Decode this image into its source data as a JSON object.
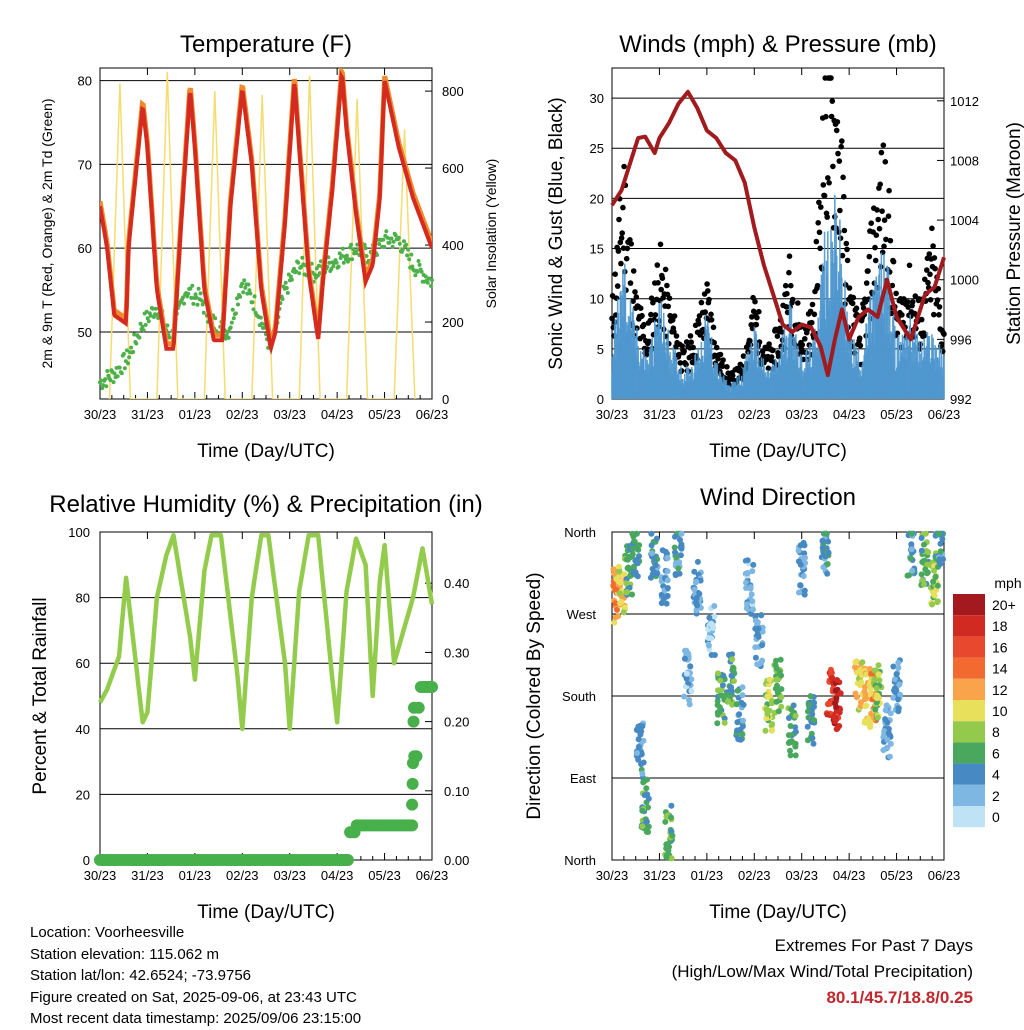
{
  "colors": {
    "temp_2m": "#d42a1f",
    "temp_9m": "#f08a2c",
    "dewpoint": "#4db04a",
    "solar": "#f5dc6e",
    "wind": "#4f97cf",
    "gust": "#000000",
    "pressure": "#a11a1e",
    "humidity": "#93cc4c",
    "precip": "#47b04b",
    "extremes": "#c2272d"
  },
  "legend": {
    "title": "mph",
    "labels": [
      "20+",
      "18",
      "16",
      "14",
      "12",
      "10",
      "8",
      "6",
      "4",
      "2",
      "0"
    ],
    "colors": [
      "#a3191f",
      "#d12a22",
      "#e8492e",
      "#f26a2f",
      "#f9a34b",
      "#e8e05a",
      "#94ca4c",
      "#49a85e",
      "#4789c2",
      "#7db7e2",
      "#bfe3f5"
    ]
  },
  "info": {
    "location": "Location: Voorheesville",
    "elevation": "Station elevation: 115.062 m",
    "latlon": "Station lat/lon: 42.6524; -73.9756",
    "created": "Figure created on Sat, 2025-09-06, at 23:43 UTC",
    "recent": "Most recent data timestamp: 2025/09/06 23:15:00"
  },
  "extremes": {
    "title": "Extremes For Past 7 Days",
    "subtitle": "(High/Low/Max Wind/Total Precipitation)",
    "values": "80.1/45.7/18.8/0.25"
  },
  "chart_data": [
    {
      "type": "line",
      "title": "Temperature (F)",
      "xlabel": "Time (Day/UTC)",
      "ylabel": "2m & 9m T (Red, Orange) & 2m Td (Green)",
      "y2label": "Solar Insolation (Yellow)",
      "xticks": [
        "30/23",
        "31/23",
        "01/23",
        "02/23",
        "03/23",
        "04/23",
        "05/23",
        "06/23"
      ],
      "xlim": [
        0,
        7
      ],
      "ylim": [
        42,
        81.5
      ],
      "yticks": [
        50,
        60,
        70,
        80
      ],
      "y2lim": [
        0,
        860
      ],
      "y2ticks": [
        0,
        200,
        400,
        600,
        800
      ],
      "grid": true,
      "series": [
        {
          "name": "2m T",
          "axis": "left",
          "x": [
            0,
            0.15,
            0.3,
            0.55,
            0.6,
            0.9,
            1.0,
            1.2,
            1.4,
            1.55,
            1.7,
            1.9,
            2.0,
            2.2,
            2.4,
            2.58,
            2.75,
            3.0,
            3.2,
            3.4,
            3.6,
            3.7,
            3.9,
            4.1,
            4.2,
            4.4,
            4.6,
            4.7,
            4.9,
            5.1,
            5.2,
            5.4,
            5.6,
            5.75,
            5.9,
            6.0,
            6.3,
            6.6,
            7.0
          ],
          "y": [
            65,
            60,
            52,
            51,
            60,
            77,
            72,
            55,
            48,
            48,
            62,
            79,
            72,
            55,
            49,
            49,
            65,
            79,
            70,
            55,
            48,
            50,
            63,
            80,
            72,
            57,
            49,
            56,
            67,
            81,
            74,
            64,
            56,
            58,
            66,
            80,
            72,
            66,
            60
          ]
        },
        {
          "name": "2m Td",
          "axis": "left",
          "x": [
            0,
            0.3,
            0.6,
            0.9,
            1.2,
            1.5,
            1.8,
            2.1,
            2.4,
            2.7,
            3.0,
            3.3,
            3.6,
            3.9,
            4.2,
            4.5,
            4.8,
            5.1,
            5.4,
            5.7,
            6.0,
            6.3,
            6.6,
            7.0
          ],
          "y": [
            44,
            45,
            47,
            51,
            53,
            49,
            55,
            54,
            51,
            50,
            56,
            53,
            48,
            55,
            58,
            57,
            58,
            59,
            60,
            59,
            61,
            61,
            58,
            56
          ]
        },
        {
          "name": "Solar",
          "axis": "right",
          "x": [
            0.2,
            0.42,
            0.64,
            1.2,
            1.42,
            1.64,
            2.2,
            2.42,
            2.64,
            3.2,
            3.42,
            3.64,
            4.2,
            4.42,
            4.64,
            5.2,
            5.42,
            5.64,
            6.2,
            6.42,
            6.64
          ],
          "y": [
            0,
            820,
            0,
            0,
            850,
            0,
            0,
            800,
            0,
            0,
            790,
            0,
            0,
            840,
            0,
            0,
            780,
            0,
            0,
            700,
            0
          ]
        }
      ]
    },
    {
      "type": "scatter",
      "title": "Winds (mph) & Pressure (mb)",
      "xlabel": "Time (Day/UTC)",
      "ylabel": "Sonic Wind & Gust (Blue, Black)",
      "y2label": "Station Pressure (Maroon)",
      "xticks": [
        "30/23",
        "31/23",
        "01/23",
        "02/23",
        "03/23",
        "04/23",
        "05/23",
        "06/23"
      ],
      "xlim": [
        0,
        7
      ],
      "ylim": [
        0,
        33
      ],
      "yticks": [
        0,
        5,
        10,
        15,
        20,
        25,
        30
      ],
      "y2lim": [
        992,
        1014.2
      ],
      "y2ticks": [
        992,
        996,
        1000,
        1004,
        1008,
        1012
      ],
      "grid": true,
      "series": [
        {
          "name": "Wind",
          "x": [
            0,
            0.25,
            0.5,
            0.75,
            1.0,
            1.25,
            1.5,
            1.75,
            2.0,
            2.25,
            2.5,
            2.75,
            3.0,
            3.25,
            3.5,
            3.75,
            4.0,
            4.25,
            4.5,
            4.75,
            5.0,
            5.25,
            5.5,
            5.75,
            6.0,
            6.25,
            6.5,
            6.75,
            7.0
          ],
          "y": [
            4,
            10,
            5,
            3,
            7,
            4,
            2,
            3,
            6,
            2,
            1,
            2,
            5,
            2,
            3,
            7,
            3,
            4,
            12,
            14,
            5,
            3,
            8,
            11,
            4,
            6,
            4,
            5,
            3
          ]
        },
        {
          "name": "Gust",
          "x": [
            0,
            0.25,
            0.5,
            0.75,
            1.0,
            1.25,
            1.5,
            1.75,
            2.0,
            2.25,
            2.5,
            2.75,
            3.0,
            3.25,
            3.5,
            3.75,
            4.0,
            4.25,
            4.5,
            4.75,
            5.0,
            5.25,
            5.5,
            5.75,
            6.0,
            6.25,
            6.5,
            6.75,
            7.0
          ],
          "y": [
            8,
            21,
            9,
            6,
            13,
            8,
            4,
            6,
            10,
            4,
            2,
            3,
            9,
            4,
            6,
            12,
            6,
            8,
            29,
            28,
            10,
            6,
            16,
            22,
            8,
            11,
            8,
            14,
            6
          ]
        },
        {
          "name": "Pressure",
          "axis": "right",
          "x": [
            0,
            0.2,
            0.4,
            0.55,
            0.7,
            0.9,
            1.0,
            1.2,
            1.4,
            1.6,
            1.8,
            2.0,
            2.2,
            2.4,
            2.6,
            2.8,
            3.0,
            3.2,
            3.4,
            3.6,
            3.8,
            4.0,
            4.2,
            4.4,
            4.55,
            4.7,
            4.85,
            5.0,
            5.2,
            5.4,
            5.6,
            5.8,
            6.0,
            6.3,
            6.6,
            6.8,
            7.0
          ],
          "y": [
            1005,
            1006,
            1008,
            1009.5,
            1009.6,
            1008.5,
            1009.5,
            1010.5,
            1011.8,
            1012.6,
            1011.5,
            1010,
            1009.5,
            1008.5,
            1008,
            1006.5,
            1003.5,
            1001,
            999,
            997,
            996.5,
            997,
            996.8,
            995.5,
            993.6,
            996,
            998,
            996,
            997.5,
            998,
            997.5,
            1000,
            997.5,
            996,
            999,
            999.5,
            1001.5
          ]
        }
      ]
    },
    {
      "type": "line",
      "title": "Relative Humidity (%) & Precipitation (in)",
      "xlabel": "Time (Day/UTC)",
      "ylabel": "Percent & Total Rainfall",
      "xticks": [
        "30/23",
        "31/23",
        "01/23",
        "02/23",
        "03/23",
        "04/23",
        "05/23",
        "06/23"
      ],
      "xlim": [
        0,
        7
      ],
      "ylim": [
        0,
        100
      ],
      "yticks": [
        0,
        20,
        40,
        60,
        80,
        100
      ],
      "y2lim": [
        0,
        0.474
      ],
      "y2ticks": [
        "0.00",
        "0.10",
        "0.20",
        "0.30",
        "0.40"
      ],
      "grid": true,
      "series": [
        {
          "name": "RH",
          "x": [
            0,
            0.15,
            0.4,
            0.55,
            0.9,
            1.0,
            1.2,
            1.4,
            1.55,
            1.9,
            2.0,
            2.2,
            2.35,
            2.55,
            2.9,
            3.0,
            3.2,
            3.4,
            3.55,
            3.9,
            4.0,
            4.2,
            4.4,
            4.6,
            4.9,
            5.0,
            5.2,
            5.4,
            5.6,
            5.75,
            5.9,
            6.0,
            6.2,
            6.4,
            6.6,
            6.8,
            7.0
          ],
          "y": [
            48,
            52,
            62,
            86,
            42,
            45,
            80,
            93,
            99,
            68,
            55,
            88,
            99,
            99,
            56,
            40,
            80,
            99,
            99,
            60,
            40,
            82,
            99,
            99,
            55,
            42,
            82,
            98,
            90,
            50,
            85,
            96,
            60,
            70,
            80,
            95,
            78
          ]
        },
        {
          "name": "Precipitation",
          "axis": "right",
          "x": [
            0,
            5.2,
            5.25,
            5.4,
            6.6,
            6.62,
            6.7,
            6.75,
            7.0
          ],
          "y": [
            0,
            0,
            0.04,
            0.05,
            0.05,
            0.15,
            0.22,
            0.25,
            0.25
          ]
        }
      ]
    },
    {
      "type": "scatter",
      "title": "Wind Direction",
      "xlabel": "Time (Day/UTC)",
      "ylabel": "Direction (Colored By Speed)",
      "xticks": [
        "30/23",
        "31/23",
        "01/23",
        "02/23",
        "03/23",
        "04/23",
        "05/23",
        "06/23"
      ],
      "xlim": [
        0,
        7
      ],
      "ylim": [
        0,
        360
      ],
      "yticks": [
        "North",
        "East",
        "South",
        "West",
        "North"
      ],
      "grid": true,
      "series": [
        {
          "name": "Direction",
          "x": [
            0.1,
            0.2,
            0.35,
            0.5,
            0.6,
            0.7,
            0.9,
            1.1,
            1.2,
            1.4,
            1.6,
            1.8,
            2.1,
            2.3,
            2.5,
            2.7,
            2.9,
            3.1,
            3.3,
            3.5,
            3.8,
            4.0,
            4.2,
            4.5,
            4.6,
            4.75,
            5.2,
            5.4,
            5.5,
            5.6,
            5.8,
            6.0,
            6.3,
            6.6,
            6.8,
            6.9
          ],
          "y": [
            290,
            300,
            320,
            340,
            120,
            60,
            330,
            310,
            30,
            340,
            200,
            300,
            250,
            180,
            200,
            160,
            300,
            240,
            170,
            190,
            140,
            320,
            150,
            340,
            180,
            170,
            190,
            180,
            175,
            185,
            140,
            190,
            340,
            330,
            310,
            350
          ],
          "speed": [
            12,
            10,
            6,
            5,
            4,
            6,
            4,
            3,
            6,
            4,
            2,
            3,
            2,
            6,
            6,
            4,
            2,
            3,
            8,
            7,
            6,
            3,
            5,
            4,
            17,
            18,
            10,
            11,
            12,
            8,
            3,
            3,
            4,
            6,
            8,
            4
          ]
        }
      ]
    }
  ]
}
